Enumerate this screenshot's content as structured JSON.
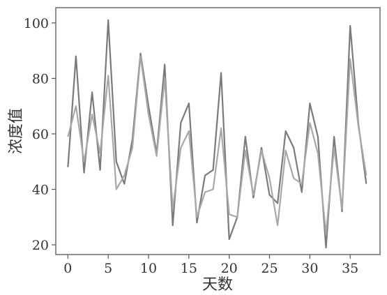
{
  "chart_data": {
    "type": "line",
    "title": "",
    "xlabel": "天数",
    "ylabel": "浓度值",
    "xlim": [
      -1.5,
      38.7
    ],
    "ylim": [
      16.5,
      105.5
    ],
    "x_ticks": [
      0,
      5,
      10,
      15,
      20,
      25,
      30,
      35
    ],
    "y_ticks": [
      20,
      40,
      60,
      80,
      100
    ],
    "grid": false,
    "legend": "none",
    "colors": [
      "#7a7a7a",
      "#a8a8a8"
    ],
    "x": [
      0,
      1,
      2,
      3,
      4,
      5,
      6,
      7,
      8,
      9,
      10,
      11,
      12,
      13,
      14,
      15,
      16,
      17,
      18,
      19,
      20,
      21,
      22,
      23,
      24,
      25,
      26,
      27,
      28,
      29,
      30,
      31,
      32,
      33,
      34,
      35,
      36,
      37
    ],
    "series": [
      {
        "values": [
          48,
          88,
          46,
          75,
          47,
          101,
          50,
          42,
          58,
          89,
          70,
          53,
          85,
          27,
          64,
          71,
          28,
          45,
          47,
          82,
          22,
          30,
          59,
          37,
          55,
          38,
          35,
          61,
          55,
          39,
          71,
          59,
          19,
          59,
          32,
          99,
          64,
          42
        ]
      },
      {
        "values": [
          59,
          70,
          50,
          67,
          53,
          81,
          40,
          45,
          55,
          88,
          67,
          52,
          80,
          33,
          55,
          61,
          30,
          39,
          40,
          62,
          31,
          30,
          54,
          38,
          54,
          44,
          27,
          54,
          44,
          42,
          64,
          53,
          24,
          55,
          33,
          87,
          63,
          45
        ]
      }
    ]
  }
}
